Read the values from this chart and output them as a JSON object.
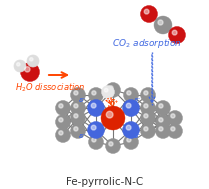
{
  "bg_color": "#ffffff",
  "title_text": "Fe-pyrrolic-N-C",
  "title_fontsize": 7.5,
  "co2_label": "CO$_2$ adsorption",
  "co2_label_color": "#4169E1",
  "co2_label_fontsize": 6.5,
  "h2o_label": "H$_2$O dissociation",
  "h2o_label_color": "#FF4500",
  "h2o_label_fontsize": 6.0,
  "delta_plus_color": "#FF4500",
  "delta_minus_color": "#4169E1",
  "fe_color": "#DD2200",
  "n_color": "#4466DD",
  "c_color": "#909090",
  "o_color": "#CC1111",
  "h_color": "#DDDDDD",
  "arrow_color": "#FF4500",
  "bond_color": "#777777"
}
